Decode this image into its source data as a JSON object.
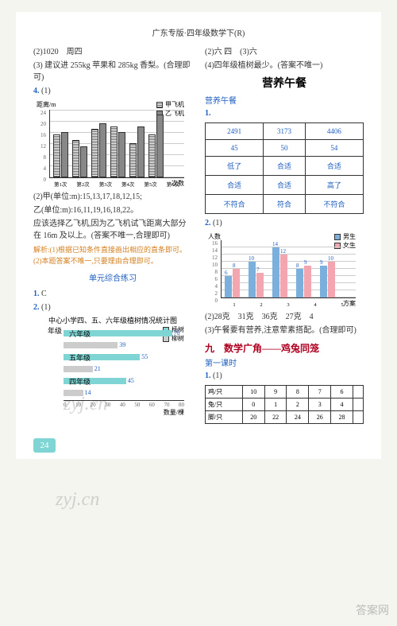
{
  "header": "广东专版·四年级数学下(R)",
  "left": {
    "q2": "(2)1020　周四",
    "q3": "(3) 建议进 255kg 苹果和 285kg 香梨。(合理即可)",
    "q4": "4.",
    "q4_1": "(1)",
    "chart1": {
      "y_title": "距离/m",
      "x_suffix": "次数",
      "legend": [
        {
          "label": "甲飞机",
          "style": "hatch"
        },
        {
          "label": "乙飞机",
          "style": "gray"
        }
      ],
      "y_ticks": [
        24,
        20,
        16,
        12,
        8,
        4,
        0
      ],
      "x_labels": [
        "第1次",
        "第2次",
        "第3次",
        "第4次",
        "第5次",
        "第6次"
      ],
      "series_a": [
        15,
        13,
        17,
        18,
        12,
        15
      ],
      "series_b": [
        16,
        11,
        19,
        16,
        18,
        22
      ],
      "y_max": 24
    },
    "q4_2": "(2)甲(单位:m):15,13,17,18,12,15;",
    "q4_2b": "乙(单位:m):16,11,19,16,18,22。",
    "q4_concl": "应该选择乙飞机,因为乙飞机试飞距离大部分在 16m 及以上。(答案不唯一,合理即可)",
    "analysis": "解析:(1)根据已知条件直接画出相应的直条即可。(2)本题答案不唯一,只要理由合理即可。",
    "unit_title": "单元综合练习",
    "a1": "1.",
    "a1_ans": "C",
    "a2": "2.",
    "a2_1": "(1)",
    "chart2_title": "中心小学四、五、六年级植树情况统计图",
    "chart2": {
      "y_title": "年级",
      "legend": [
        {
          "label": "杨树",
          "style": "cyan"
        },
        {
          "label": "柳树",
          "style": "gray2"
        }
      ],
      "rows": [
        {
          "label": "六年级",
          "a": 78,
          "a_lbl": "78",
          "b": 39,
          "b_lbl": "39"
        },
        {
          "label": "五年级",
          "a": 55,
          "a_lbl": "55",
          "b": 21,
          "b_lbl": "21"
        },
        {
          "label": "四年级",
          "a": 45,
          "a_lbl": "45",
          "b": 14,
          "b_lbl": "14"
        }
      ],
      "x_ticks": [
        "0",
        "10",
        "20",
        "30",
        "40",
        "50",
        "60",
        "70",
        "80"
      ],
      "x_title": "数量/棵",
      "x_max": 80
    }
  },
  "right": {
    "r1": "(2)六 四　(3)六",
    "r2": "(4)四年级植树最少。(答案不唯一)",
    "lunch_title": "营养午餐",
    "lunch_sub": "营养午餐",
    "lunch_q1": "1.",
    "table1": [
      [
        "2491",
        "3173",
        "4406"
      ],
      [
        "45",
        "50",
        "54"
      ],
      [
        "低了",
        "合适",
        "合适"
      ],
      [
        "合适",
        "合适",
        "高了"
      ],
      [
        "不符合",
        "符合",
        "不符合"
      ]
    ],
    "lunch_q2": "2.",
    "lunch_q2_1": "(1)",
    "chart3": {
      "y_title": "人数",
      "legend": [
        {
          "label": "男生",
          "style": "blue"
        },
        {
          "label": "女生",
          "style": "pink"
        }
      ],
      "y_ticks": [
        16,
        14,
        12,
        10,
        8,
        6,
        4,
        2,
        0
      ],
      "x_labels": [
        "1",
        "2",
        "3",
        "4",
        "5"
      ],
      "x_title": "方案",
      "series": [
        {
          "m": 6,
          "f": 8,
          "ml": "6",
          "fl": "8"
        },
        {
          "m": 10,
          "f": 7,
          "ml": "10",
          "fl": "7"
        },
        {
          "m": 14,
          "f": 12,
          "ml": "14",
          "fl": "12"
        },
        {
          "m": 8,
          "f": 9,
          "ml": "8",
          "fl": "9"
        },
        {
          "m": 9,
          "f": 10,
          "ml": "9",
          "fl": "10"
        }
      ],
      "y_max": 16
    },
    "lunch_q2_2": "(2)28克　31克　36克　27克　4",
    "lunch_q2_3": "(3)午餐要有营养,注意荤素搭配。(合理即可)",
    "sec9": "九　数学广角——鸡兔同笼",
    "lesson1": "第一课时",
    "s9_q1": "1.",
    "s9_q1_1": "(1)",
    "table2": {
      "rows": [
        [
          "鸡/只",
          "10",
          "9",
          "8",
          "7",
          "6",
          ""
        ],
        [
          "兔/只",
          "0",
          "1",
          "2",
          "3",
          "4",
          ""
        ],
        [
          "脚/只",
          "20",
          "22",
          "24",
          "26",
          "28",
          ""
        ]
      ]
    }
  },
  "page_num": "24",
  "watermark": "zyj.cn",
  "corner_mark": "答案网"
}
